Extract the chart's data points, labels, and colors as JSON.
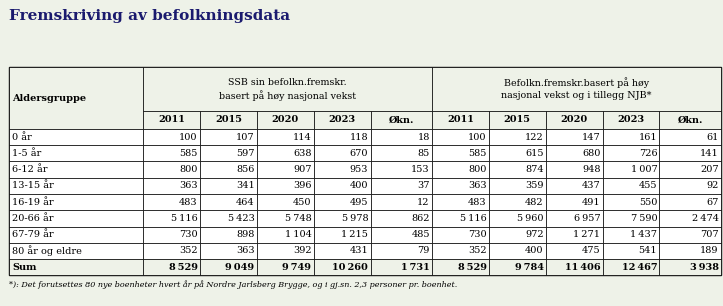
{
  "title": "Fremskriving av befolkningsdata",
  "title_fontsize": 11,
  "background_color": "#eef2e8",
  "header_bg": "#eef2e8",
  "sum_bg": "#eef2e8",
  "white": "#ffffff",
  "col_header1": "Aldersgruppe",
  "col_header2_line1": "SSB sin befolkn.fremskr.",
  "col_header2_line2": "basert på høy nasjonal vekst",
  "col_header3_line1": "Befolkn.fremskr.basert på høy",
  "col_header3_line2": "nasjonal vekst og i tillegg NJB*",
  "year_headers": [
    "2011",
    "2015",
    "2020",
    "2023",
    "Økn."
  ],
  "age_groups": [
    "0 år",
    "1-5 år",
    "6-12 år",
    "13-15 år",
    "16-19 år",
    "20-66 år",
    "67-79 år",
    "80 år og eldre",
    "Sum"
  ],
  "ssb_data": [
    [
      100,
      107,
      114,
      118,
      18
    ],
    [
      585,
      597,
      638,
      670,
      85
    ],
    [
      800,
      856,
      907,
      953,
      153
    ],
    [
      363,
      341,
      396,
      400,
      37
    ],
    [
      483,
      464,
      450,
      495,
      12
    ],
    [
      5116,
      5423,
      5748,
      5978,
      862
    ],
    [
      730,
      898,
      1104,
      1215,
      485
    ],
    [
      352,
      363,
      392,
      431,
      79
    ],
    [
      8529,
      9049,
      9749,
      10260,
      1731
    ]
  ],
  "njb_data": [
    [
      100,
      122,
      147,
      161,
      61
    ],
    [
      585,
      615,
      680,
      726,
      141
    ],
    [
      800,
      874,
      948,
      1007,
      207
    ],
    [
      363,
      359,
      437,
      455,
      92
    ],
    [
      483,
      482,
      491,
      550,
      67
    ],
    [
      5116,
      5960,
      6957,
      7590,
      2474
    ],
    [
      730,
      972,
      1271,
      1437,
      707
    ],
    [
      352,
      400,
      475,
      541,
      189
    ],
    [
      8529,
      9784,
      11406,
      12467,
      3938
    ]
  ],
  "footnote": "*): Det forutsettes 80 nye boenheter hvert år på Nordre Jarlsberg Brygge, og i gj.sn. 2,3 personer pr. boenhet."
}
